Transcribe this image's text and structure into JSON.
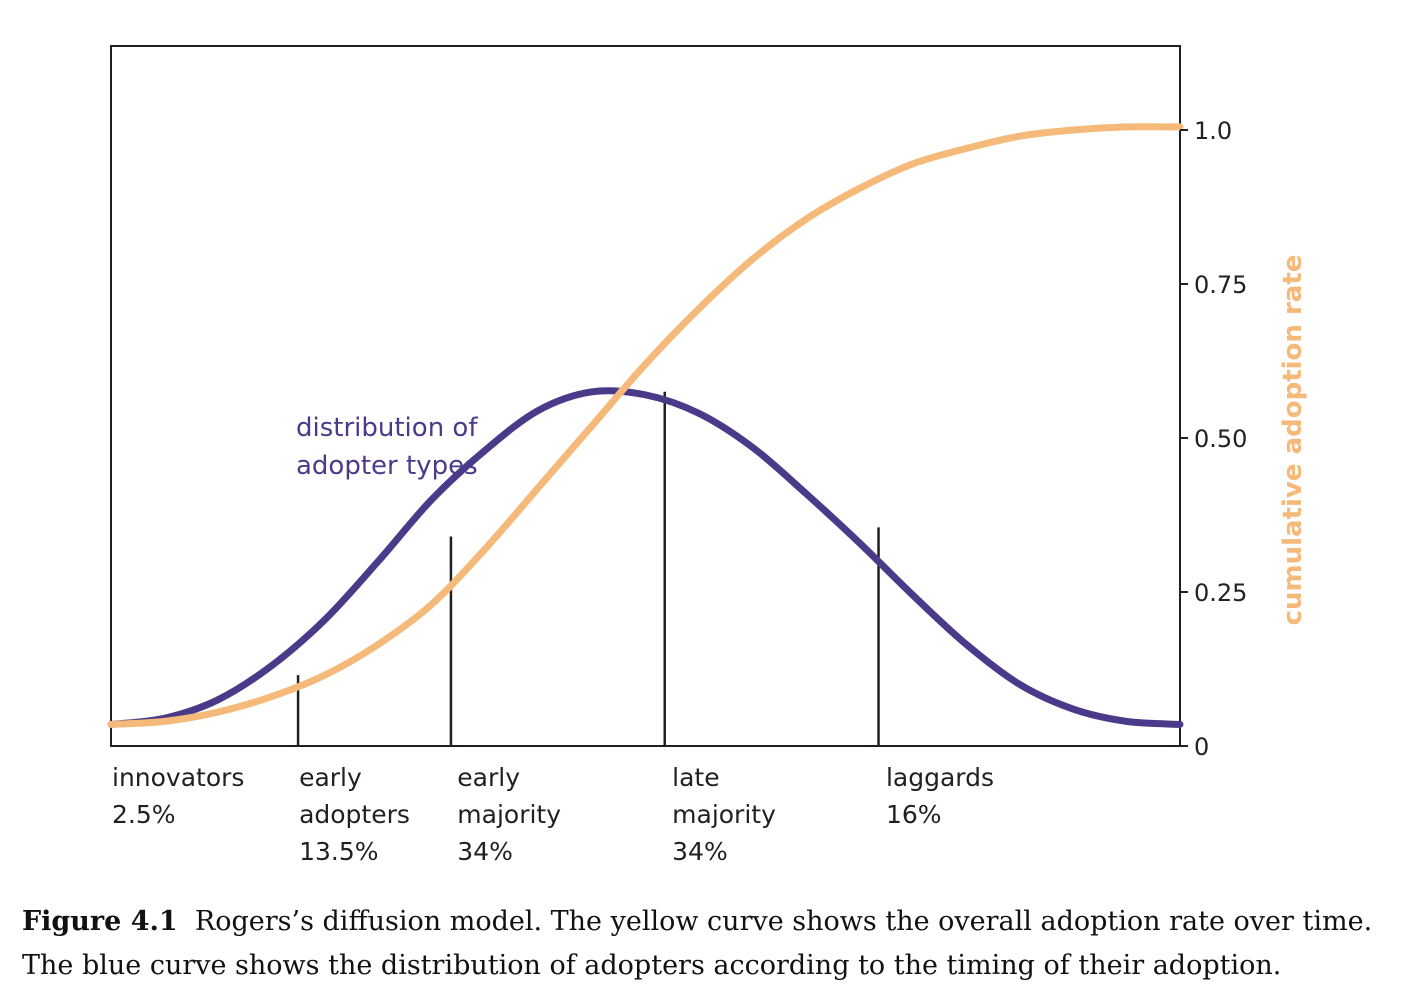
{
  "chart_data": {
    "type": "line",
    "x_range": [
      0,
      1
    ],
    "ylim": [
      0,
      1.0
    ],
    "y_ticks": [
      "0",
      "0.25",
      "0.50",
      "0.75",
      "1.0"
    ],
    "y_tick_values": [
      0,
      0.25,
      0.5,
      0.75,
      1.0
    ],
    "y_axis_position": "right",
    "y_axis_title": "cumulative adoption rate",
    "series": [
      {
        "name": "distribution of adopter types",
        "color": "#4b3a8a",
        "shape": "bell",
        "x": [
          0.0,
          0.05,
          0.1,
          0.15,
          0.2,
          0.25,
          0.3,
          0.35,
          0.4,
          0.45,
          0.5,
          0.55,
          0.6,
          0.65,
          0.7,
          0.75,
          0.8,
          0.85,
          0.9,
          0.95,
          1.0
        ],
        "y": [
          0.035,
          0.045,
          0.075,
          0.13,
          0.205,
          0.3,
          0.4,
          0.48,
          0.545,
          0.575,
          0.57,
          0.54,
          0.485,
          0.41,
          0.33,
          0.245,
          0.165,
          0.1,
          0.06,
          0.04,
          0.035
        ]
      },
      {
        "color": "#f5b979",
        "shape": "s-curve",
        "x": [
          0.0,
          0.05,
          0.1,
          0.15,
          0.2,
          0.25,
          0.3,
          0.35,
          0.4,
          0.45,
          0.5,
          0.55,
          0.6,
          0.65,
          0.7,
          0.75,
          0.8,
          0.85,
          0.9,
          0.95,
          1.0
        ],
        "y": [
          0.035,
          0.04,
          0.055,
          0.08,
          0.115,
          0.165,
          0.23,
          0.32,
          0.42,
          0.52,
          0.62,
          0.71,
          0.79,
          0.855,
          0.905,
          0.945,
          0.97,
          0.99,
          1.0,
          1.005,
          1.005
        ]
      }
    ],
    "dividers": [
      {
        "x": 0.175,
        "y": 0.115
      },
      {
        "x": 0.318,
        "y": 0.34
      },
      {
        "x": 0.518,
        "y": 0.575
      },
      {
        "x": 0.718,
        "y": 0.355
      }
    ],
    "categories": [
      {
        "lines": [
          "innovators",
          "2.5%"
        ],
        "start": 0.0
      },
      {
        "lines": [
          "early",
          "adopters",
          "13.5%"
        ],
        "start": 0.175
      },
      {
        "lines": [
          "early",
          "majority",
          "34%"
        ],
        "start": 0.323
      },
      {
        "lines": [
          "late",
          "majority",
          "34%"
        ],
        "start": 0.524
      },
      {
        "lines": [
          "laggards",
          "16%"
        ],
        "start": 0.724
      }
    ],
    "annotations": [
      {
        "series": "distribution of adopter types",
        "lines": [
          "distribution of",
          "adopter types"
        ],
        "color": "#4b3a8a"
      }
    ],
    "grid": false
  },
  "caption": {
    "label": "Figure 4.1",
    "text": "Rogers’s diffusion model. The yellow curve shows the overall adoption rate over time. The blue curve shows the distribution of adopters according to the timing of their adoption."
  },
  "colors": {
    "frame": "#231f20",
    "purple": "#4b3a8a",
    "orange": "#f5b979"
  }
}
